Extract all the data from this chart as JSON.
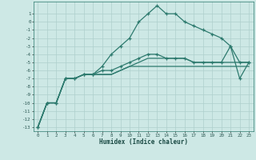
{
  "xlabel": "Humidex (Indice chaleur)",
  "x_values": [
    0,
    1,
    2,
    3,
    4,
    5,
    6,
    7,
    8,
    9,
    10,
    11,
    12,
    13,
    14,
    15,
    16,
    17,
    18,
    19,
    20,
    21,
    22,
    23
  ],
  "line1_x": [
    0,
    1,
    2,
    3,
    4,
    5,
    6,
    7,
    8,
    9,
    10,
    11,
    12,
    13,
    14,
    15,
    16,
    17,
    18,
    19,
    20,
    21,
    22,
    23
  ],
  "line1": [
    -13,
    -10,
    -10,
    -7,
    -7,
    -6.5,
    -6.5,
    -5.5,
    -4,
    -3,
    -2,
    0,
    1,
    2,
    1,
    1,
    0,
    -0.5,
    -1,
    -1.5,
    -2,
    -3,
    -5,
    -5
  ],
  "line2_x": [
    0,
    1,
    2,
    3,
    4,
    5,
    6,
    7,
    8,
    9,
    10,
    11,
    12,
    13,
    14,
    15,
    16,
    17,
    18,
    19,
    20,
    21,
    22,
    23
  ],
  "line2": [
    -13,
    -10,
    -10,
    -7,
    -7,
    -6.5,
    -6.5,
    -6,
    -6,
    -5.5,
    -5,
    -4.5,
    -4,
    -4,
    -4.5,
    -4.5,
    -4.5,
    -5,
    -5,
    -5,
    -5,
    -3,
    -7,
    -5
  ],
  "line3_x": [
    0,
    1,
    2,
    3,
    4,
    5,
    6,
    7,
    8,
    9,
    10,
    11,
    12,
    13,
    14,
    15,
    16,
    17,
    18,
    19,
    20,
    21,
    22,
    23
  ],
  "line3": [
    -13,
    -10,
    -10,
    -7,
    -7,
    -6.5,
    -6.5,
    -6.5,
    -6.5,
    -6,
    -5.5,
    -5.5,
    -5.5,
    -5.5,
    -5.5,
    -5.5,
    -5.5,
    -5.5,
    -5.5,
    -5.5,
    -5.5,
    -5.5,
    -5.5,
    -5.5
  ],
  "line4_x": [
    0,
    1,
    2,
    3,
    4,
    5,
    6,
    7,
    8,
    9,
    10,
    11,
    12,
    13,
    14,
    15,
    16,
    17,
    18,
    19,
    20,
    21,
    22,
    23
  ],
  "line4": [
    -13,
    -10,
    -10,
    -7,
    -7,
    -6.5,
    -6.5,
    -6.5,
    -6.5,
    -6,
    -5.5,
    -5,
    -4.5,
    -4.5,
    -4.5,
    -4.5,
    -4.5,
    -5,
    -5,
    -5,
    -5,
    -5,
    -5,
    -5
  ],
  "line_color": "#2d7a6e",
  "bg_color": "#cde8e5",
  "grid_color": "#aecfcc",
  "ylim": [
    -13.5,
    2.5
  ],
  "yticks": [
    -13,
    -12,
    -11,
    -10,
    -9,
    -8,
    -7,
    -6,
    -5,
    -4,
    -3,
    -2,
    -1,
    0,
    1
  ],
  "xticks": [
    0,
    1,
    2,
    3,
    4,
    5,
    6,
    7,
    8,
    9,
    10,
    11,
    12,
    13,
    14,
    15,
    16,
    17,
    18,
    19,
    20,
    21,
    22,
    23
  ],
  "marker": "+"
}
